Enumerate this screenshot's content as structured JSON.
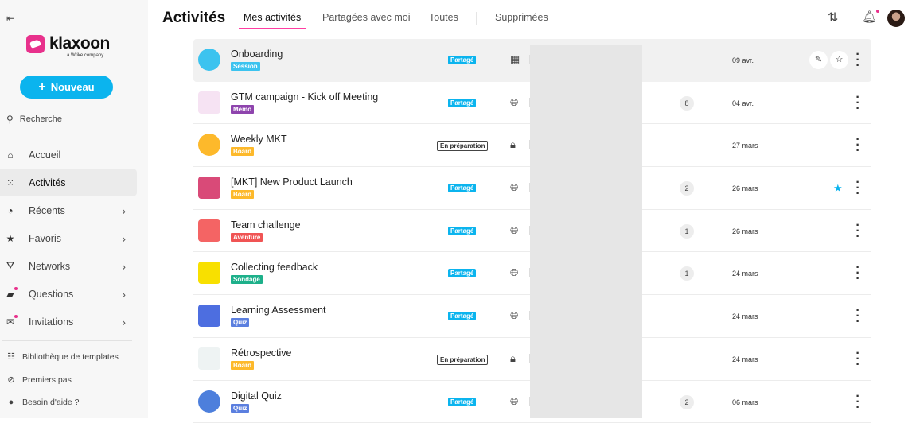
{
  "sidebar": {
    "brand": "klaxoon",
    "brand_sub": "a Wrike company",
    "new_label": "Nouveau",
    "search_label": "Recherche",
    "nav": [
      {
        "label": "Accueil",
        "icon": "home-icon",
        "glyph": "⌂",
        "chev": false
      },
      {
        "label": "Activités",
        "icon": "grid-dots-icon",
        "glyph": "⁙",
        "chev": false,
        "active": true
      },
      {
        "label": "Récents",
        "icon": "clock-icon",
        "glyph": "◔",
        "chev": true
      },
      {
        "label": "Favoris",
        "icon": "star-icon",
        "glyph": "★",
        "chev": true
      },
      {
        "label": "Networks",
        "icon": "network-icon",
        "glyph": "⛛",
        "chev": true
      },
      {
        "label": "Questions",
        "icon": "inbox-icon",
        "glyph": "▰",
        "chev": true,
        "dot": true
      },
      {
        "label": "Invitations",
        "icon": "mail-icon",
        "glyph": "✉",
        "chev": true,
        "dot": true
      }
    ],
    "footer": [
      {
        "label": "Bibliothèque de templates",
        "icon": "template-icon",
        "glyph": "☷"
      },
      {
        "label": "Premiers pas",
        "icon": "compass-icon",
        "glyph": "⊘"
      },
      {
        "label": "Besoin d'aide ?",
        "icon": "help-icon",
        "glyph": "●"
      }
    ]
  },
  "header": {
    "title": "Activités",
    "tabs": [
      "Mes activités",
      "Partagées avec moi",
      "Toutes",
      "Supprimées"
    ],
    "active_tab": 0
  },
  "colors": {
    "accent": "#0bb4ee",
    "brand": "#e8318c",
    "tab_underline": "#ff3da2"
  },
  "rows": [
    {
      "title": "Onboarding",
      "type": "Session",
      "type_color": "#3cc3ef",
      "status": "Partagé",
      "visibility": "building-icon",
      "count": "",
      "date": "09 avr.",
      "thumb": "#3cc3ef",
      "circle": true,
      "highlight": true,
      "favorite": false
    },
    {
      "title": "GTM campaign - Kick off Meeting",
      "type": "Mémo",
      "type_color": "#8e44ad",
      "status": "Partagé",
      "visibility": "globe-icon",
      "count": "8",
      "date": "04 avr.",
      "thumb": "#f6e3f3",
      "circle": false
    },
    {
      "title": "Weekly MKT",
      "type": "Board",
      "type_color": "#fdb92b",
      "status": "En préparation",
      "visibility": "lock-icon",
      "count": "",
      "date": "27 mars",
      "thumb": "#fdb92b",
      "circle": true
    },
    {
      "title": "[MKT] New Product Launch",
      "type": "Board",
      "type_color": "#fdb92b",
      "status": "Partagé",
      "visibility": "globe-icon",
      "count": "2",
      "date": "26 mars",
      "thumb": "#d94a78",
      "circle": false,
      "favorite": true
    },
    {
      "title": "Team challenge",
      "type": "Aventure",
      "type_color": "#f05454",
      "status": "Partagé",
      "visibility": "globe-icon",
      "count": "1",
      "date": "26 mars",
      "thumb": "#f46464",
      "circle": false
    },
    {
      "title": "Collecting feedback",
      "type": "Sondage",
      "type_color": "#1db08a",
      "status": "Partagé",
      "visibility": "globe-icon",
      "count": "1",
      "date": "24 mars",
      "thumb": "#f8e000",
      "circle": false
    },
    {
      "title": "Learning Assessment",
      "type": "Quiz",
      "type_color": "#5b7fdf",
      "status": "Partagé",
      "visibility": "globe-icon",
      "count": "",
      "date": "24 mars",
      "thumb": "#4d6ee0",
      "circle": false
    },
    {
      "title": "Rétrospective",
      "type": "Board",
      "type_color": "#fdb92b",
      "status": "En préparation",
      "visibility": "lock-icon",
      "count": "",
      "date": "24 mars",
      "thumb": "#eef3f3",
      "circle": false
    },
    {
      "title": "Digital Quiz",
      "type": "Quiz",
      "type_color": "#5b7fdf",
      "status": "Partagé",
      "visibility": "globe-icon",
      "count": "2",
      "date": "06 mars",
      "thumb": "#4d7fdc",
      "circle": true
    }
  ]
}
